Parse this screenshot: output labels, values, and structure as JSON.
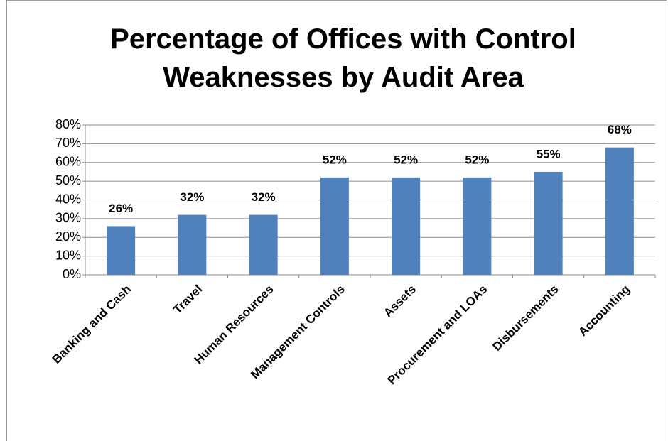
{
  "chart_data": {
    "type": "bar",
    "title": "Percentage of Offices with Control Weaknesses by Audit Area",
    "categories": [
      "Banking and Cash",
      "Travel",
      "Human Resources",
      "Management Controls",
      "Assets",
      "Procurement and LOAs",
      "Disbursements",
      "Accounting"
    ],
    "values": [
      26,
      32,
      32,
      52,
      52,
      52,
      55,
      68
    ],
    "value_labels": [
      "26%",
      "32%",
      "32%",
      "52%",
      "52%",
      "52%",
      "55%",
      "68%"
    ],
    "color": "#4f81bd",
    "ylim": [
      0,
      80
    ],
    "yticks": [
      {
        "value": 0,
        "label": "0%"
      },
      {
        "value": 10,
        "label": "10%"
      },
      {
        "value": 20,
        "label": "20%"
      },
      {
        "value": 30,
        "label": "30%"
      },
      {
        "value": 40,
        "label": "40%"
      },
      {
        "value": 50,
        "label": "50%"
      },
      {
        "value": 60,
        "label": "60%"
      },
      {
        "value": 70,
        "label": "70%"
      },
      {
        "value": 80,
        "label": "80%"
      }
    ],
    "grid": true
  }
}
